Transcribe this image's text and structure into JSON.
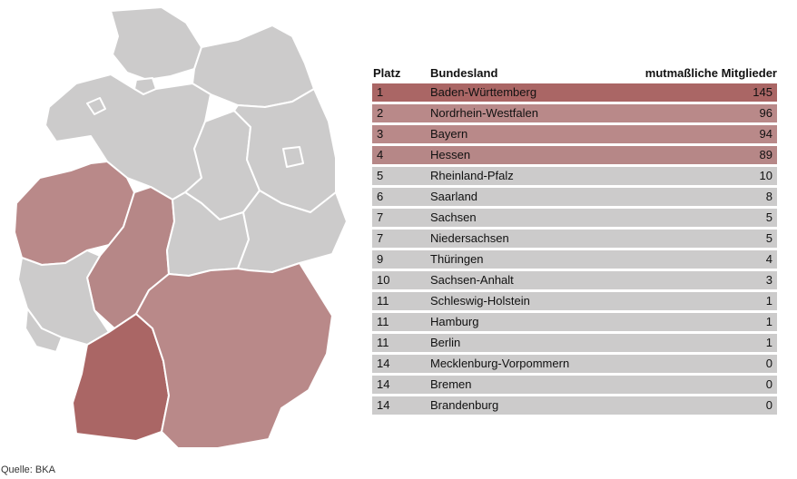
{
  "colors": {
    "top": "#aa6665",
    "high": "#b98989",
    "mid": "#b68787",
    "low": "#cccbcb",
    "divider": "#ffffff"
  },
  "chart_data": {
    "type": "table",
    "columns": [
      "Platz",
      "Bundesland",
      "mutmaßliche Mitglieder"
    ],
    "rows": [
      {
        "rank": "1",
        "state": "Baden-Württemberg",
        "value": 145
      },
      {
        "rank": "2",
        "state": "Nordrhein-Westfalen",
        "value": 96
      },
      {
        "rank": "3",
        "state": "Bayern",
        "value": 94
      },
      {
        "rank": "4",
        "state": "Hessen",
        "value": 89
      },
      {
        "rank": "5",
        "state": "Rheinland-Pfalz",
        "value": 10
      },
      {
        "rank": "6",
        "state": "Saarland",
        "value": 8
      },
      {
        "rank": "7",
        "state": "Sachsen",
        "value": 5
      },
      {
        "rank": "7",
        "state": "Niedersachsen",
        "value": 5
      },
      {
        "rank": "9",
        "state": "Thüringen",
        "value": 4
      },
      {
        "rank": "10",
        "state": "Sachsen-Anhalt",
        "value": 3
      },
      {
        "rank": "11",
        "state": "Schleswig-Holstein",
        "value": 1
      },
      {
        "rank": "11",
        "state": "Hamburg",
        "value": 1
      },
      {
        "rank": "11",
        "state": "Berlin",
        "value": 1
      },
      {
        "rank": "14",
        "state": "Mecklenburg-Vorpommern",
        "value": 0
      },
      {
        "rank": "14",
        "state": "Bremen",
        "value": 0
      },
      {
        "rank": "14",
        "state": "Brandenburg",
        "value": 0
      }
    ]
  },
  "source": "Quelle: BKA"
}
